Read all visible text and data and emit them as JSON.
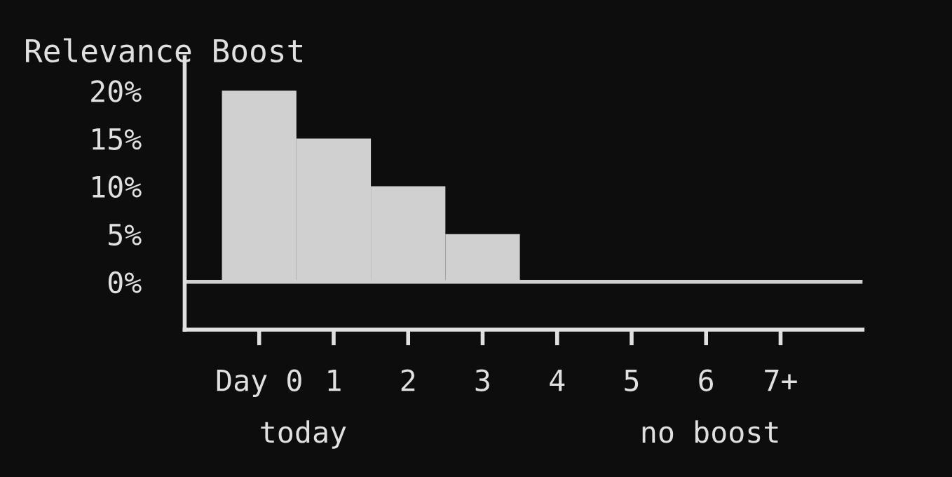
{
  "chart_data": {
    "type": "bar",
    "title": "Relevance Boost",
    "categories": [
      "Day 0",
      "1",
      "2",
      "3",
      "4",
      "5",
      "6",
      "7+"
    ],
    "values": [
      20,
      15,
      10,
      5,
      0,
      0,
      0,
      0
    ],
    "color": "#d0d0d0",
    "ylim": [
      -5,
      23.5
    ],
    "yticks": [
      {
        "value": 0,
        "label": "0%"
      },
      {
        "value": 5,
        "label": "5%"
      },
      {
        "value": 10,
        "label": "10%"
      },
      {
        "value": 15,
        "label": "15%"
      },
      {
        "value": 20,
        "label": "20%"
      }
    ],
    "ref_lines": [
      {
        "axis": "y",
        "value": 0,
        "color": "#d0d0d0"
      }
    ],
    "annotations": [
      "today",
      "no boost"
    ],
    "grid": false,
    "legend": false
  }
}
